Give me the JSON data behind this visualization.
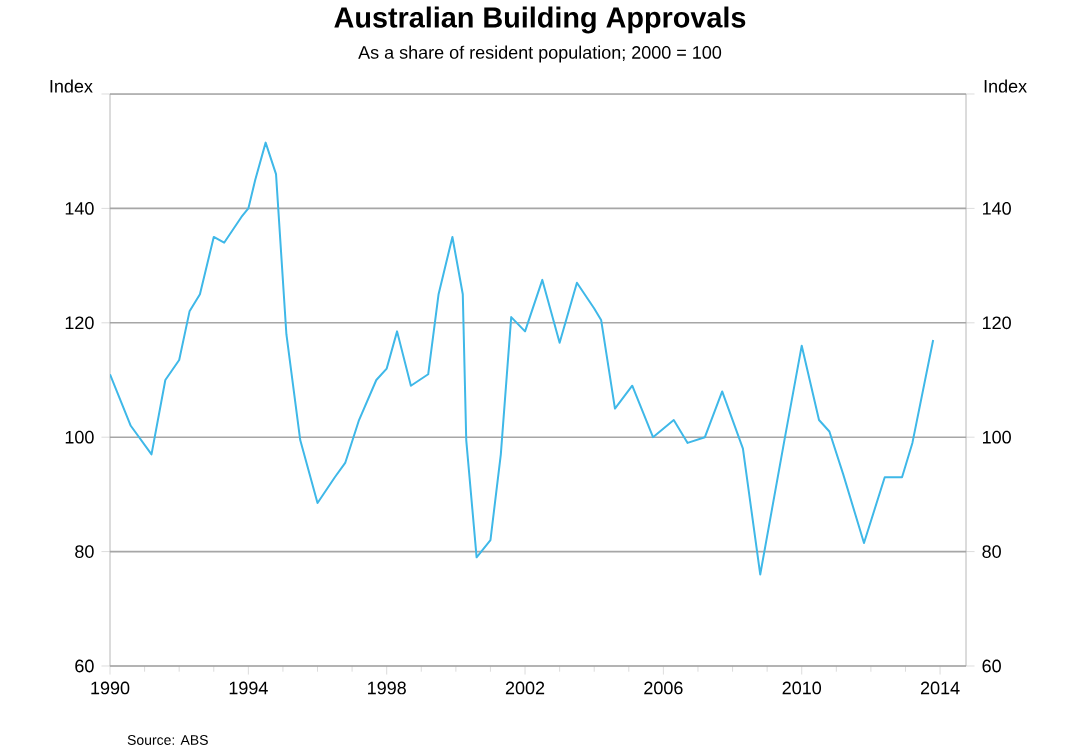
{
  "chart_data": {
    "type": "line",
    "title": "Australian Building Approvals",
    "subtitle": "As a share of resident population; 2000 = 100",
    "ylabel": "Index",
    "y2label": "Index",
    "annotations": [
      "Source: ABS"
    ],
    "x": [
      1990.0,
      1990.6,
      1991.2,
      1991.6,
      1992.0,
      1992.3,
      1992.6,
      1993.0,
      1993.3,
      1993.8,
      1994.0,
      1994.2,
      1994.5,
      1994.8,
      1995.1,
      1995.5,
      1996.0,
      1996.5,
      1996.8,
      1997.2,
      1997.7,
      1998.0,
      1998.3,
      1998.7,
      1999.2,
      1999.5,
      1999.9,
      2000.2,
      2000.3,
      2000.6,
      2001.0,
      2001.3,
      2001.6,
      2002.0,
      2002.5,
      2003.0,
      2003.5,
      2004.0,
      2004.2,
      2004.6,
      2005.1,
      2005.7,
      2006.3,
      2006.7,
      2007.2,
      2007.7,
      2008.3,
      2008.8,
      2009.5,
      2010.0,
      2010.5,
      2010.8,
      2011.2,
      2011.8,
      2012.4,
      2012.9,
      2013.2,
      2013.8
    ],
    "series": [
      {
        "color": "#3fb8e8",
        "values": [
          111,
          102,
          97,
          110,
          113.5,
          122,
          125,
          135,
          134,
          138.5,
          140,
          145,
          151.5,
          146,
          118,
          99.5,
          88.5,
          93,
          95.5,
          103,
          110,
          112,
          118.5,
          109,
          111,
          125,
          135,
          125,
          99.5,
          79,
          82,
          97,
          121,
          118.5,
          127.5,
          116.5,
          127,
          122.5,
          120.5,
          105,
          109,
          100,
          103,
          99,
          100,
          108,
          98,
          76,
          99.5,
          116,
          103,
          101,
          93.5,
          81.5,
          93,
          93,
          99,
          117
        ]
      }
    ],
    "xlim": [
      1990,
      2014.75
    ],
    "xticks": [
      1990,
      1994,
      1998,
      2002,
      2006,
      2010,
      2014
    ],
    "ylim": [
      60,
      160
    ],
    "yticks": [
      60,
      80,
      100,
      120,
      140,
      {
        "value": 160,
        "label": null
      }
    ],
    "y2lim": [
      60,
      160
    ],
    "y2ticks": [
      60,
      80,
      100,
      120,
      140,
      {
        "value": 160,
        "label": null
      }
    ],
    "grid": "y",
    "marker": "none",
    "line_style": "solid"
  }
}
